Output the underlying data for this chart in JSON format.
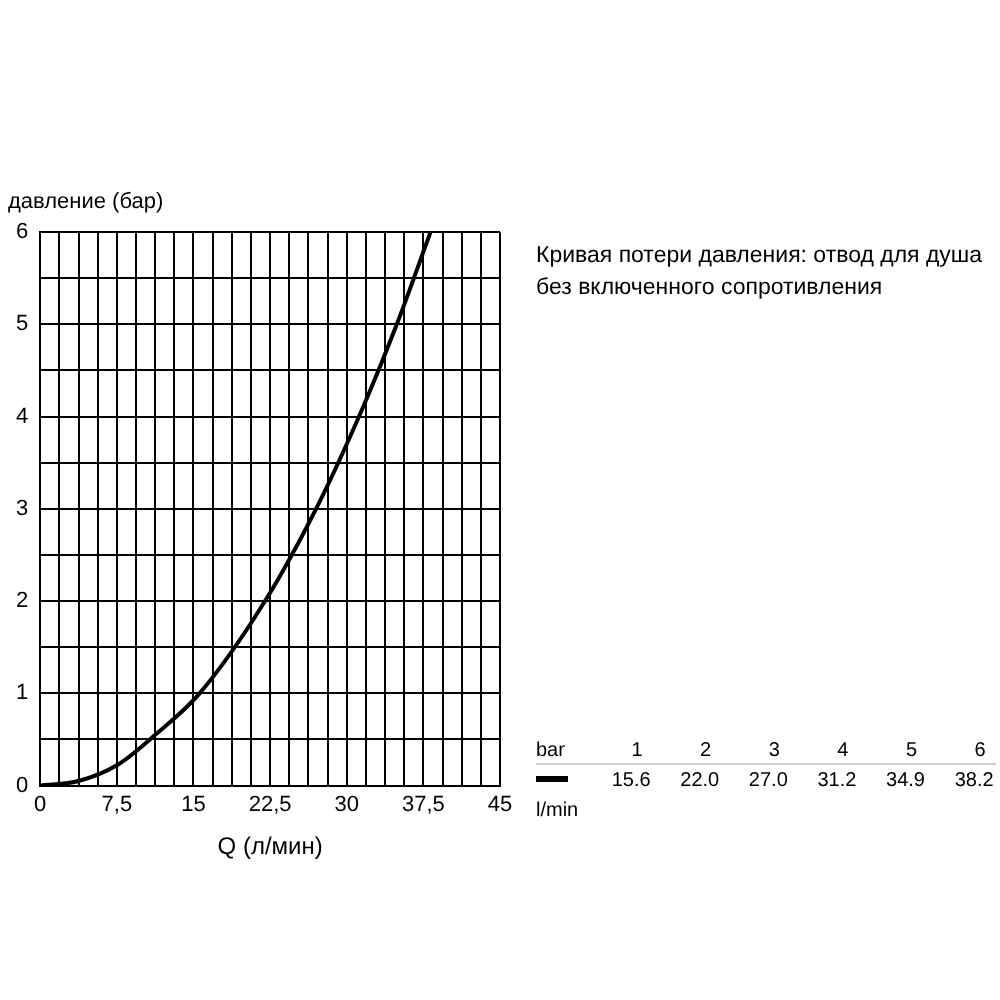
{
  "chart_data": {
    "type": "line",
    "title": "Кривая потери давления: отвод для душа без включенного сопротивления",
    "xlabel": "Q (л/мин)",
    "ylabel": "давление (бар)",
    "annotations": [
      "bar",
      "1",
      "2",
      "3",
      "4",
      "5",
      "6",
      "l/min",
      "15.6",
      "22.0",
      "27.0",
      "31.2",
      "34.9",
      "38.2"
    ],
    "series": [
      {
        "color": "#000000",
        "x": [
          0,
          3.75,
          7.5,
          11.25,
          15.6,
          22.0,
          27.0,
          31.2,
          34.9,
          38.2
        ],
        "values": [
          0,
          0.05,
          0.22,
          0.55,
          1,
          2,
          3,
          4,
          5,
          6
        ]
      }
    ],
    "xlim": [
      0,
      45
    ],
    "ylim": [
      0,
      6
    ],
    "xticks": [
      0,
      {
        "value": 1.875,
        "label": null
      },
      {
        "value": 3.75,
        "label": null
      },
      {
        "value": 5.625,
        "label": null
      },
      {
        "value": 7.5,
        "label": "7,5"
      },
      {
        "value": 9.375,
        "label": null
      },
      {
        "value": 11.25,
        "label": null
      },
      {
        "value": 13.125,
        "label": null
      },
      15,
      {
        "value": 16.875,
        "label": null
      },
      {
        "value": 18.75,
        "label": null
      },
      {
        "value": 20.625,
        "label": null
      },
      {
        "value": 22.5,
        "label": "22,5"
      },
      {
        "value": 24.375,
        "label": null
      },
      {
        "value": 26.25,
        "label": null
      },
      {
        "value": 28.125,
        "label": null
      },
      30,
      {
        "value": 31.875,
        "label": null
      },
      {
        "value": 33.75,
        "label": null
      },
      {
        "value": 35.625,
        "label": null
      },
      {
        "value": 37.5,
        "label": "37,5"
      },
      {
        "value": 39.375,
        "label": null
      },
      {
        "value": 41.25,
        "label": null
      },
      {
        "value": 43.125,
        "label": null
      },
      45
    ],
    "yticks": [
      0,
      {
        "value": 0.5,
        "label": null
      },
      1,
      {
        "value": 1.5,
        "label": null
      },
      2,
      {
        "value": 2.5,
        "label": null
      },
      3,
      {
        "value": 3.5,
        "label": null
      },
      4,
      {
        "value": 4.5,
        "label": null
      },
      5,
      {
        "value": 5.5,
        "label": null
      },
      6
    ],
    "grid": true,
    "legend": false,
    "marker": "none",
    "line_style": "solid"
  }
}
